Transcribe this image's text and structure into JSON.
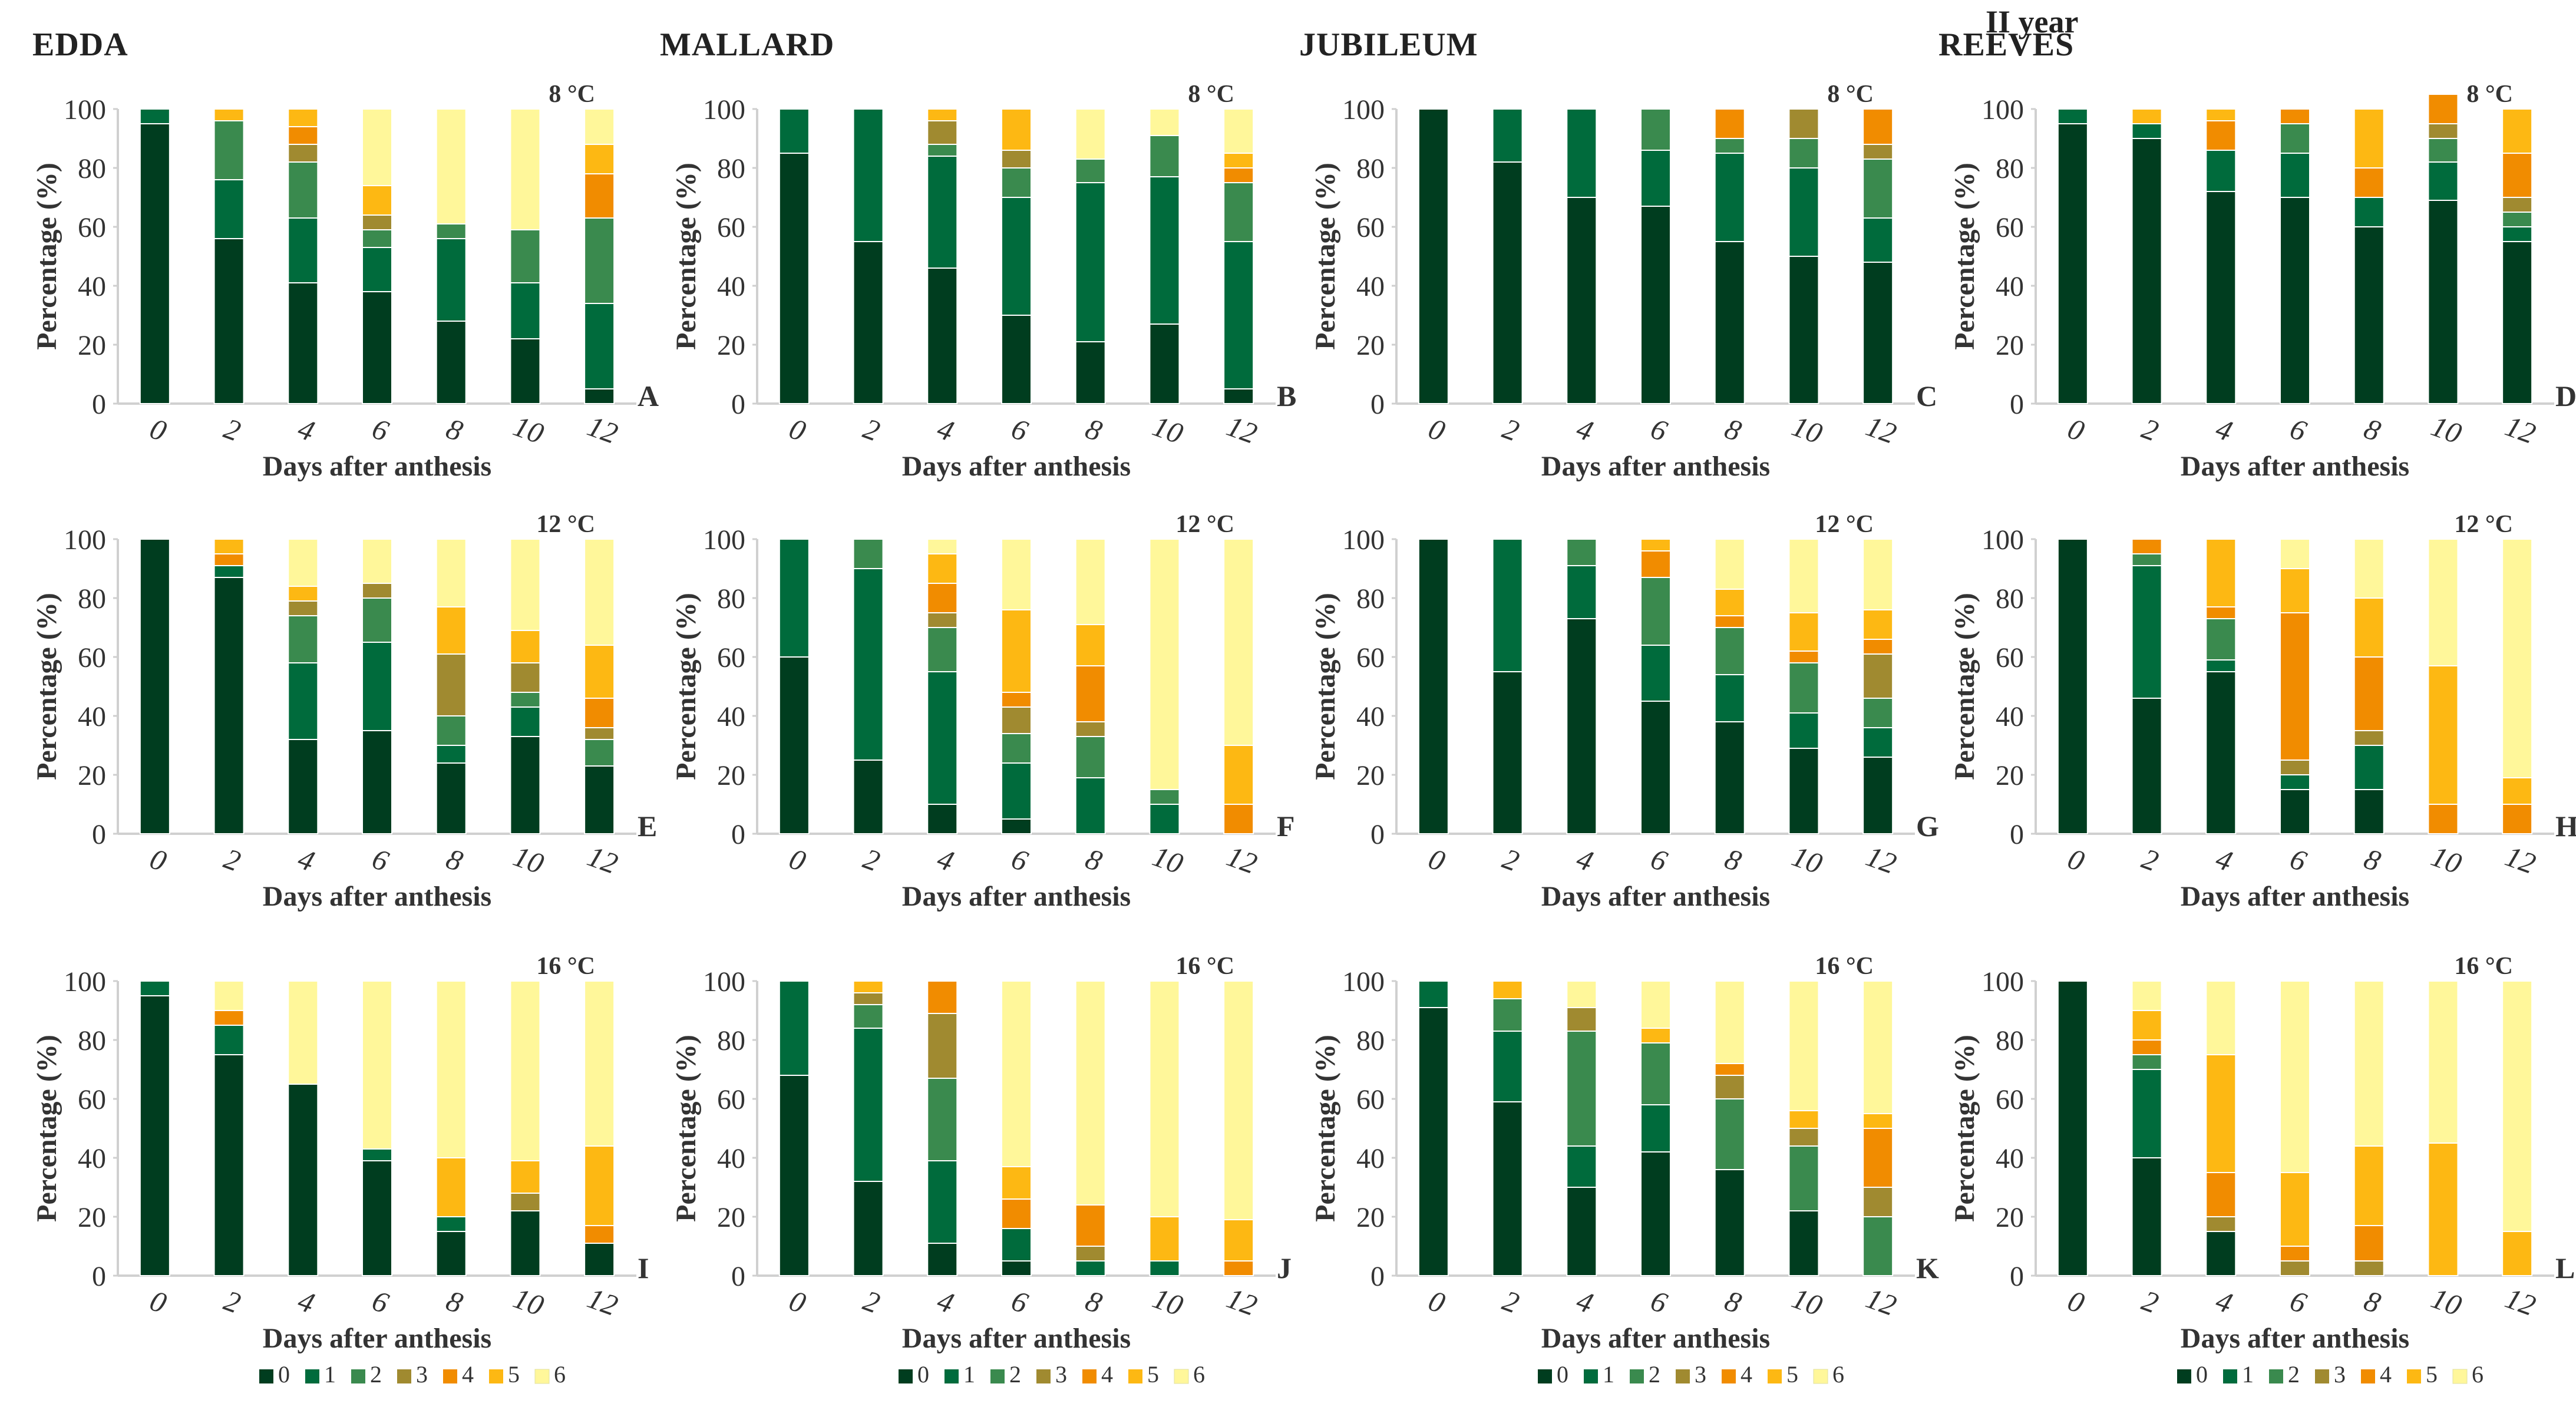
{
  "year_label": "II year",
  "varieties": [
    "EDDA",
    "MALLARD",
    "JUBILEUM",
    "REEVES"
  ],
  "temperatures": [
    "8 °C",
    "12 °C",
    "16 °C"
  ],
  "panel_letters": [
    "A",
    "B",
    "C",
    "D",
    "E",
    "F",
    "G",
    "H",
    "I",
    "J",
    "K",
    "L"
  ],
  "colors": {
    "0": "#003d1f",
    "1": "#006b3c",
    "2": "#3a8a4e",
    "3": "#a08a30",
    "4": "#f18c00",
    "5": "#fdb813",
    "6": "#fff79a",
    "frame": "#d0d0d0",
    "text": "#333333"
  },
  "chart_data": {
    "type": "bar",
    "stacked": true,
    "ylabel": "Percentage (%)",
    "xlabel": "Days after anthesis",
    "ylim": [
      0,
      100
    ],
    "yticks": [
      0,
      20,
      40,
      60,
      80,
      100
    ],
    "categories": [
      "0",
      "2",
      "4",
      "6",
      "8",
      "10",
      "12"
    ],
    "legend": [
      "0",
      "1",
      "2",
      "3",
      "4",
      "5",
      "6"
    ],
    "panels": [
      {
        "letter": "A",
        "variety": "EDDA",
        "temperature": "8 °C",
        "bars": [
          [
            95,
            5,
            0,
            0,
            0,
            0,
            0
          ],
          [
            56,
            20,
            20,
            0,
            0,
            4,
            0
          ],
          [
            41,
            22,
            19,
            6,
            6,
            6,
            0
          ],
          [
            38,
            15,
            6,
            5,
            0,
            10,
            26
          ],
          [
            28,
            28,
            5,
            0,
            0,
            0,
            39
          ],
          [
            22,
            19,
            18,
            0,
            0,
            0,
            41
          ],
          [
            5,
            29,
            29,
            0,
            15,
            10,
            12
          ]
        ]
      },
      {
        "letter": "B",
        "variety": "MALLARD",
        "temperature": "8 °C",
        "bars": [
          [
            85,
            15,
            0,
            0,
            0,
            0,
            0
          ],
          [
            55,
            45,
            0,
            0,
            0,
            0,
            0
          ],
          [
            46,
            38,
            4,
            8,
            0,
            4,
            0
          ],
          [
            30,
            40,
            10,
            6,
            0,
            14,
            0
          ],
          [
            21,
            54,
            8,
            0,
            0,
            0,
            17
          ],
          [
            27,
            50,
            14,
            0,
            0,
            0,
            9
          ],
          [
            5,
            50,
            20,
            0,
            5,
            5,
            15
          ]
        ]
      },
      {
        "letter": "C",
        "variety": "JUBILEUM",
        "temperature": "8 °C",
        "bars": [
          [
            100,
            0,
            0,
            0,
            0,
            0,
            0
          ],
          [
            82,
            18,
            0,
            0,
            0,
            0,
            0
          ],
          [
            70,
            30,
            0,
            0,
            0,
            0,
            0
          ],
          [
            67,
            19,
            14,
            0,
            0,
            0,
            0
          ],
          [
            55,
            30,
            5,
            0,
            10,
            0,
            0
          ],
          [
            50,
            30,
            10,
            10,
            0,
            0,
            0
          ],
          [
            48,
            15,
            20,
            5,
            12,
            0,
            0
          ]
        ]
      },
      {
        "letter": "D",
        "variety": "REEVES",
        "temperature": "8 °C",
        "bars": [
          [
            95,
            5,
            0,
            0,
            0,
            0,
            0
          ],
          [
            90,
            5,
            0,
            0,
            0,
            5,
            0
          ],
          [
            72,
            14,
            0,
            0,
            10,
            4,
            0
          ],
          [
            70,
            15,
            10,
            0,
            5,
            0,
            0
          ],
          [
            60,
            10,
            0,
            0,
            10,
            20,
            0
          ],
          [
            69,
            13,
            8,
            5,
            10,
            0,
            0
          ],
          [
            55,
            5,
            5,
            5,
            15,
            15,
            0
          ]
        ]
      },
      {
        "letter": "E",
        "variety": "EDDA",
        "temperature": "12 °C",
        "bars": [
          [
            100,
            0,
            0,
            0,
            0,
            0,
            0
          ],
          [
            87,
            4,
            0,
            0,
            4,
            5,
            0
          ],
          [
            32,
            26,
            16,
            5,
            0,
            5,
            16
          ],
          [
            35,
            30,
            15,
            5,
            0,
            0,
            15
          ],
          [
            24,
            6,
            10,
            21,
            0,
            16,
            23
          ],
          [
            33,
            10,
            5,
            10,
            0,
            11,
            31
          ],
          [
            23,
            0,
            9,
            4,
            10,
            18,
            36
          ]
        ]
      },
      {
        "letter": "F",
        "variety": "MALLARD",
        "temperature": "12 °C",
        "bars": [
          [
            60,
            40,
            0,
            0,
            0,
            0,
            0
          ],
          [
            25,
            65,
            10,
            0,
            0,
            0,
            0
          ],
          [
            10,
            45,
            15,
            5,
            10,
            10,
            5
          ],
          [
            5,
            19,
            10,
            9,
            5,
            28,
            24
          ],
          [
            0,
            19,
            14,
            5,
            19,
            14,
            29
          ],
          [
            0,
            10,
            5,
            0,
            0,
            0,
            85
          ],
          [
            0,
            0,
            0,
            0,
            10,
            20,
            70
          ]
        ]
      },
      {
        "letter": "G",
        "variety": "JUBILEUM",
        "temperature": "12 °C",
        "bars": [
          [
            100,
            0,
            0,
            0,
            0,
            0,
            0
          ],
          [
            55,
            45,
            0,
            0,
            0,
            0,
            0
          ],
          [
            73,
            18,
            9,
            0,
            0,
            0,
            0
          ],
          [
            45,
            19,
            23,
            0,
            9,
            4,
            0
          ],
          [
            38,
            16,
            16,
            0,
            4,
            9,
            17
          ],
          [
            29,
            12,
            17,
            0,
            4,
            13,
            25
          ],
          [
            26,
            10,
            10,
            15,
            5,
            10,
            24
          ]
        ]
      },
      {
        "letter": "H",
        "variety": "REEVES",
        "temperature": "12 °C",
        "bars": [
          [
            100,
            0,
            0,
            0,
            0,
            0,
            0
          ],
          [
            46,
            45,
            4,
            0,
            5,
            0,
            0
          ],
          [
            55,
            4,
            14,
            0,
            4,
            23,
            0
          ],
          [
            15,
            5,
            0,
            5,
            50,
            15,
            10
          ],
          [
            15,
            15,
            0,
            5,
            25,
            20,
            20
          ],
          [
            0,
            0,
            0,
            0,
            10,
            47,
            43
          ],
          [
            0,
            0,
            0,
            0,
            10,
            9,
            81
          ]
        ]
      },
      {
        "letter": "I",
        "variety": "EDDA",
        "temperature": "16 °C",
        "bars": [
          [
            95,
            5,
            0,
            0,
            0,
            0,
            0
          ],
          [
            75,
            10,
            0,
            0,
            5,
            0,
            10
          ],
          [
            65,
            0,
            0,
            0,
            0,
            0,
            35
          ],
          [
            39,
            4,
            0,
            0,
            0,
            0,
            57
          ],
          [
            15,
            5,
            0,
            0,
            0,
            20,
            60
          ],
          [
            22,
            0,
            0,
            6,
            0,
            11,
            61
          ],
          [
            11,
            0,
            0,
            0,
            6,
            27,
            56
          ]
        ]
      },
      {
        "letter": "J",
        "variety": "MALLARD",
        "temperature": "16 °C",
        "bars": [
          [
            68,
            32,
            0,
            0,
            0,
            0,
            0
          ],
          [
            32,
            52,
            8,
            4,
            0,
            4,
            0
          ],
          [
            11,
            28,
            28,
            22,
            11,
            0,
            0
          ],
          [
            5,
            11,
            0,
            0,
            10,
            11,
            63
          ],
          [
            0,
            5,
            0,
            5,
            14,
            0,
            76
          ],
          [
            0,
            5,
            0,
            0,
            0,
            15,
            80
          ],
          [
            0,
            0,
            0,
            0,
            5,
            14,
            81
          ]
        ]
      },
      {
        "letter": "K",
        "variety": "JUBILEUM",
        "temperature": "16 °C",
        "bars": [
          [
            91,
            9,
            0,
            0,
            0,
            0,
            0
          ],
          [
            59,
            24,
            11,
            0,
            0,
            6,
            0
          ],
          [
            30,
            14,
            39,
            8,
            0,
            0,
            9
          ],
          [
            42,
            16,
            21,
            0,
            0,
            5,
            16
          ],
          [
            36,
            0,
            24,
            8,
            4,
            0,
            28
          ],
          [
            22,
            0,
            22,
            6,
            0,
            6,
            44
          ],
          [
            0,
            0,
            20,
            10,
            20,
            5,
            45
          ]
        ]
      },
      {
        "letter": "L",
        "variety": "REEVES",
        "temperature": "16 °C",
        "bars": [
          [
            100,
            0,
            0,
            0,
            0,
            0,
            0
          ],
          [
            40,
            30,
            5,
            0,
            5,
            10,
            10
          ],
          [
            15,
            0,
            0,
            5,
            15,
            40,
            25
          ],
          [
            0,
            0,
            0,
            5,
            5,
            25,
            65
          ],
          [
            0,
            0,
            0,
            5,
            12,
            27,
            56
          ],
          [
            0,
            0,
            0,
            0,
            0,
            45,
            55
          ],
          [
            0,
            0,
            0,
            0,
            0,
            15,
            85
          ]
        ]
      }
    ]
  }
}
